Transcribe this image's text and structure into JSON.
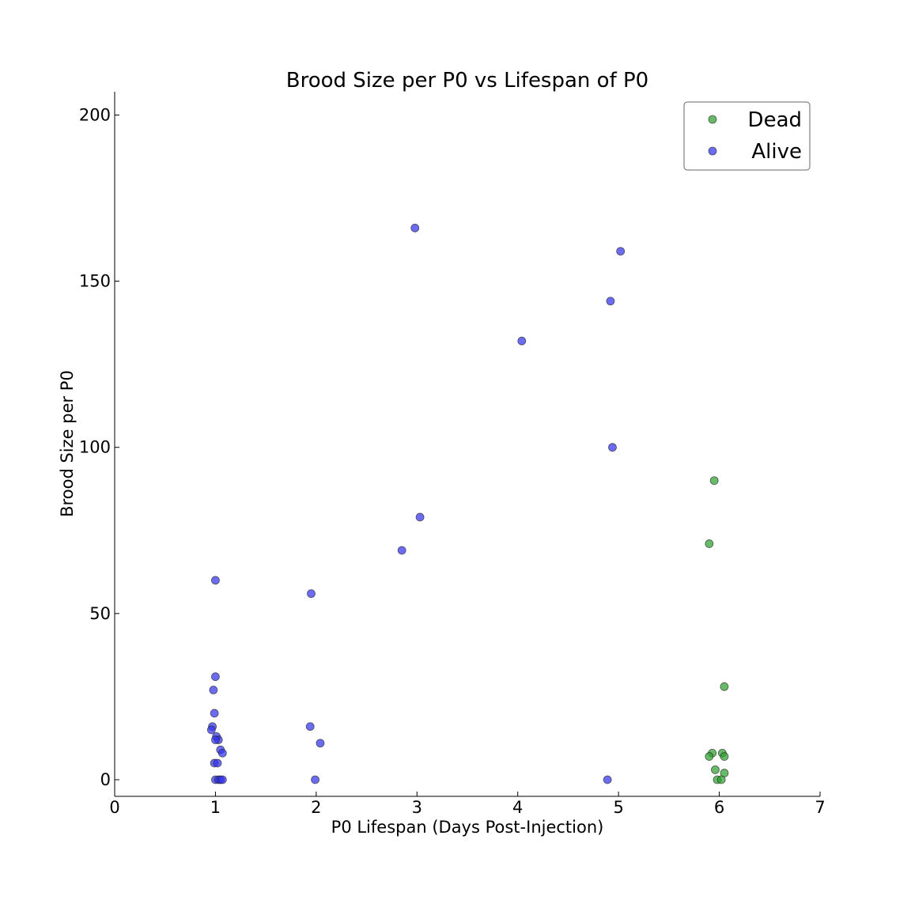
{
  "chart_data": {
    "type": "scatter",
    "title": "Brood Size per P0 vs Lifespan of P0",
    "xlabel": "P0 Lifespan (Days Post-Injection)",
    "ylabel": "Brood Size per P0",
    "xlim": [
      0,
      7
    ],
    "ylim": [
      -5,
      207
    ],
    "xticks": [
      "0",
      "1",
      "2",
      "3",
      "4",
      "5",
      "6",
      "7"
    ],
    "yticks": [
      "0",
      "50",
      "100",
      "150",
      "200"
    ],
    "grid": false,
    "legend_position": "top-right",
    "series": [
      {
        "name": "Dead",
        "color": "#2ca02c",
        "points": [
          [
            5.95,
            90
          ],
          [
            5.9,
            71
          ],
          [
            6.05,
            28
          ],
          [
            5.93,
            8
          ],
          [
            6.03,
            8
          ],
          [
            5.9,
            7
          ],
          [
            6.05,
            7
          ],
          [
            5.96,
            3
          ],
          [
            6.05,
            2
          ],
          [
            5.98,
            0
          ],
          [
            6.02,
            0
          ]
        ]
      },
      {
        "name": "Alive",
        "color": "#3333ee",
        "points": [
          [
            2.98,
            166
          ],
          [
            5.02,
            159
          ],
          [
            4.92,
            144
          ],
          [
            4.04,
            132
          ],
          [
            4.94,
            100
          ],
          [
            3.03,
            79
          ],
          [
            2.85,
            69
          ],
          [
            1.0,
            60
          ],
          [
            1.95,
            56
          ],
          [
            1.0,
            31
          ],
          [
            0.98,
            27
          ],
          [
            0.99,
            20
          ],
          [
            1.94,
            16
          ],
          [
            0.97,
            16
          ],
          [
            0.96,
            15
          ],
          [
            1.01,
            13
          ],
          [
            1.03,
            12
          ],
          [
            1.0,
            12
          ],
          [
            2.04,
            11
          ],
          [
            1.05,
            9
          ],
          [
            1.07,
            8
          ],
          [
            0.99,
            5
          ],
          [
            1.02,
            5
          ],
          [
            1.0,
            0
          ],
          [
            1.03,
            0
          ],
          [
            1.05,
            0
          ],
          [
            1.07,
            0
          ],
          [
            1.99,
            0
          ],
          [
            4.89,
            0
          ]
        ]
      }
    ]
  }
}
